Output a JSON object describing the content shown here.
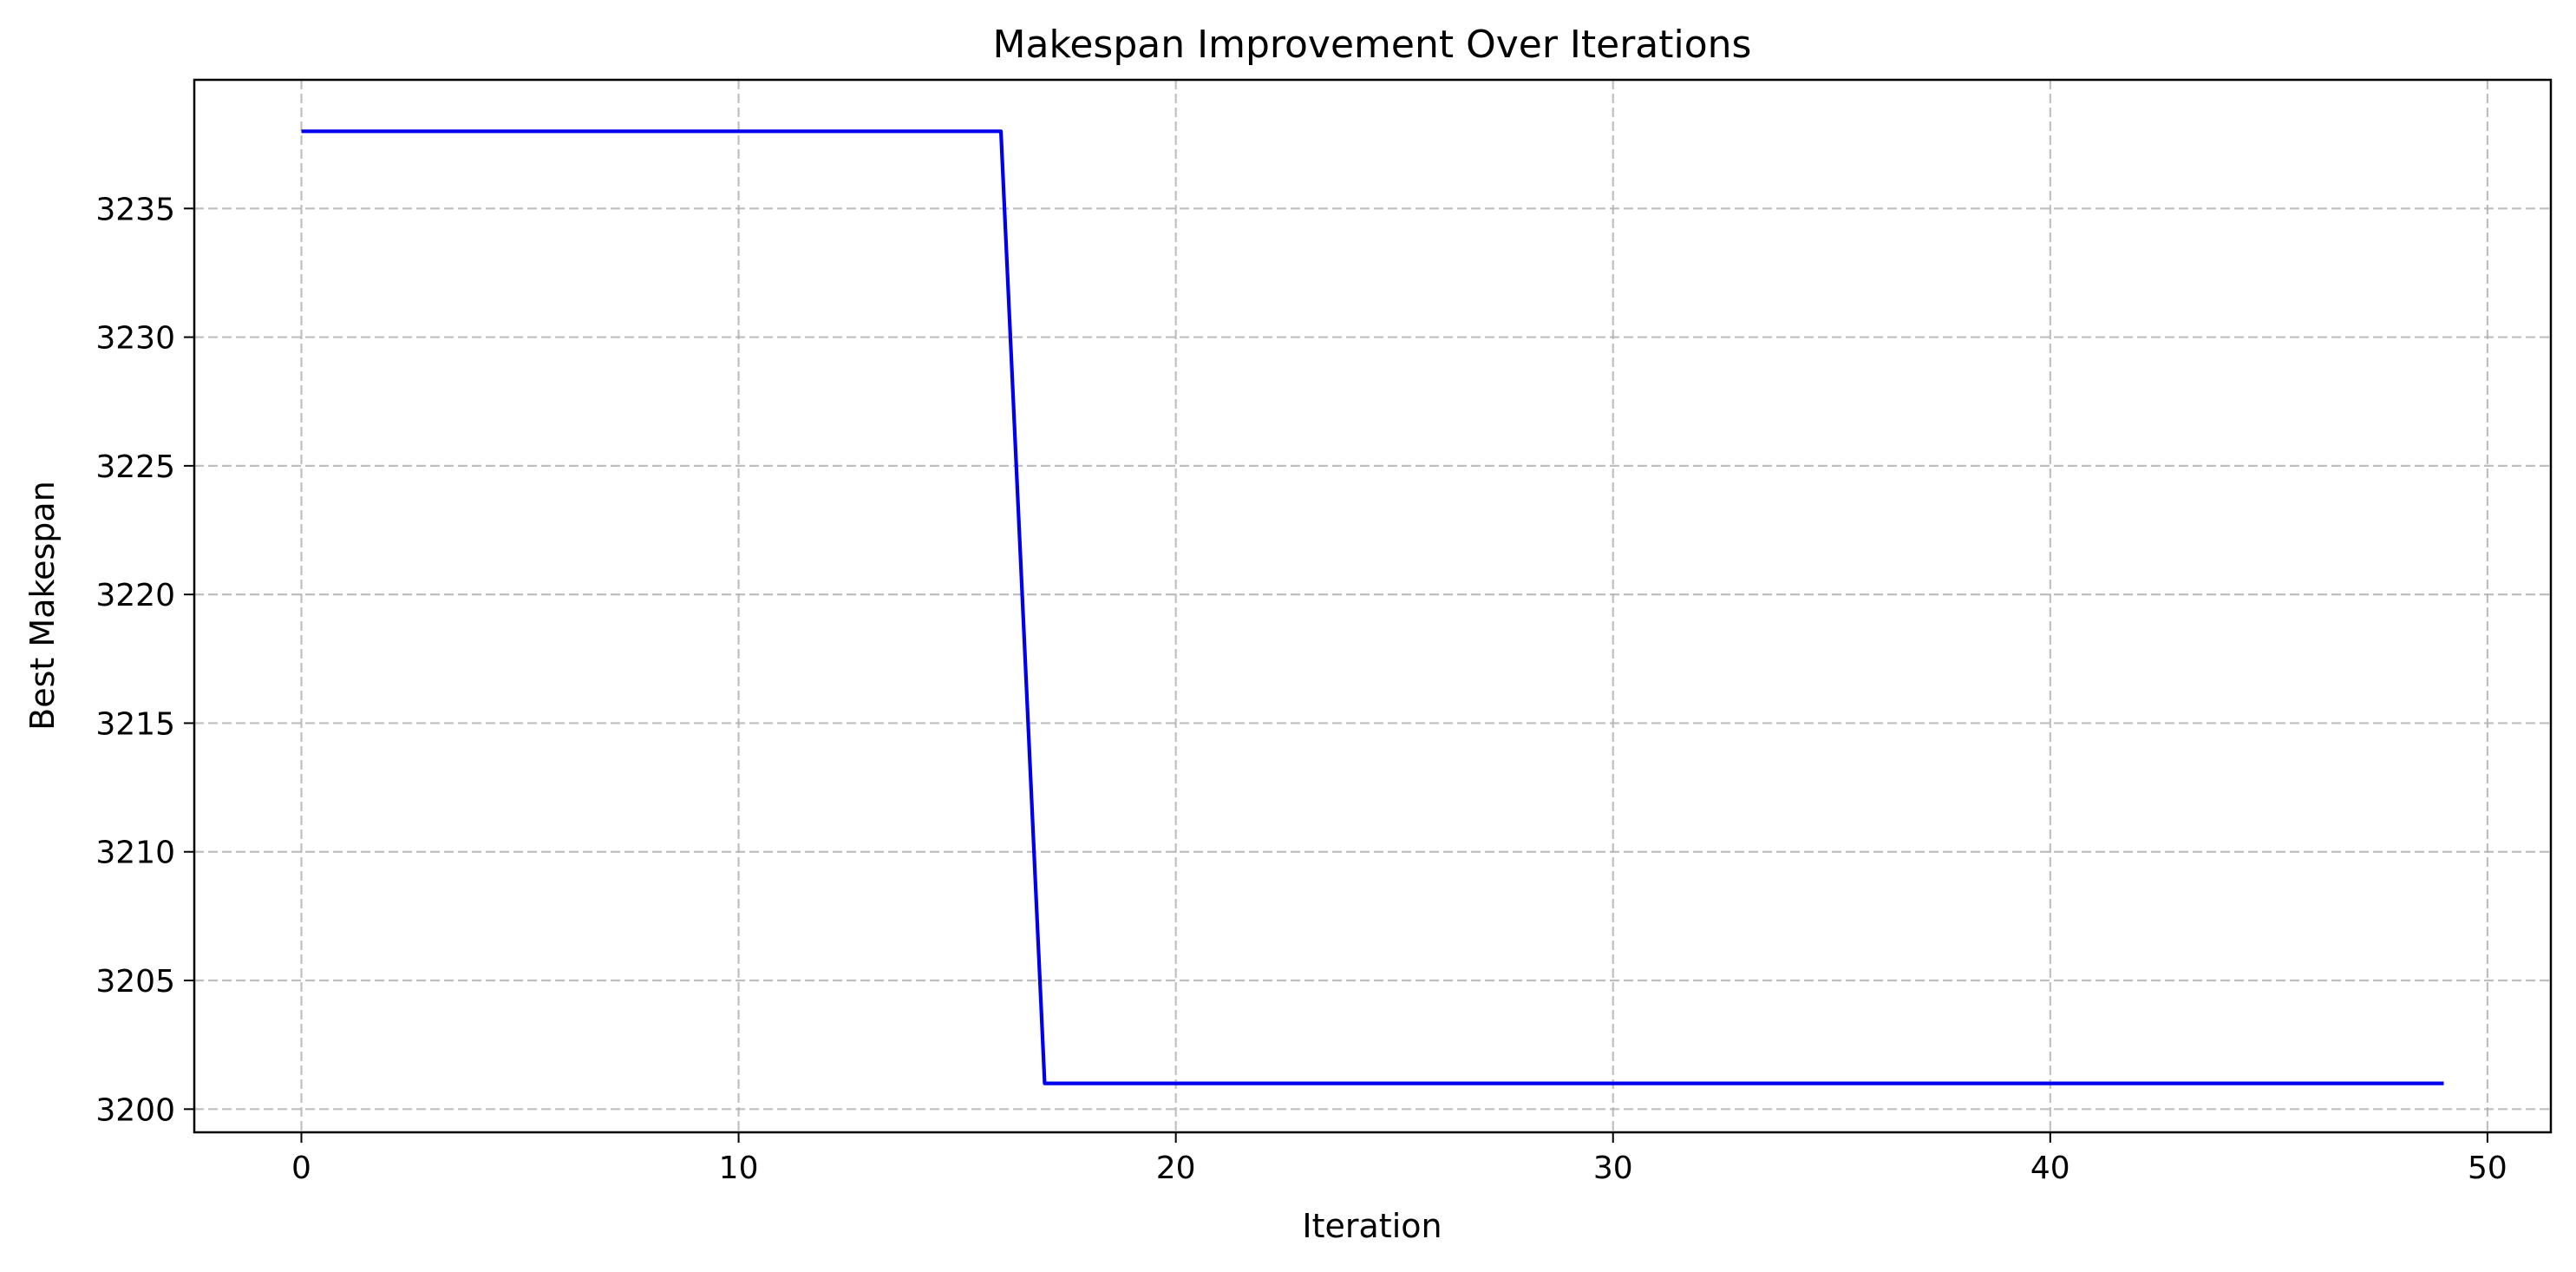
{
  "chart_data": {
    "type": "line",
    "title": "Makespan Improvement Over Iterations",
    "xlabel": "Iteration",
    "ylabel": "Best Makespan",
    "xlim": [
      -2.45,
      51.45
    ],
    "ylim": [
      3199.1,
      3240.0
    ],
    "x_ticks": [
      0,
      10,
      20,
      30,
      40,
      50
    ],
    "y_ticks": [
      3200,
      3205,
      3210,
      3215,
      3220,
      3225,
      3230,
      3235
    ],
    "grid": true,
    "legend": "none",
    "colors": {
      "line": "#0000ee",
      "grid": "#b0b0b0",
      "frame": "#000000"
    },
    "series": [
      {
        "x": [
          0,
          1,
          2,
          3,
          4,
          5,
          6,
          7,
          8,
          9,
          10,
          11,
          12,
          13,
          14,
          15,
          16,
          17,
          18,
          19,
          20,
          21,
          22,
          23,
          24,
          25,
          26,
          27,
          28,
          29,
          30,
          31,
          32,
          33,
          34,
          35,
          36,
          37,
          38,
          39,
          40,
          41,
          42,
          43,
          44,
          45,
          46,
          47,
          48,
          49
        ],
        "values": [
          3238,
          3238,
          3238,
          3238,
          3238,
          3238,
          3238,
          3238,
          3238,
          3238,
          3238,
          3238,
          3238,
          3238,
          3238,
          3238,
          3238,
          3201,
          3201,
          3201,
          3201,
          3201,
          3201,
          3201,
          3201,
          3201,
          3201,
          3201,
          3201,
          3201,
          3201,
          3201,
          3201,
          3201,
          3201,
          3201,
          3201,
          3201,
          3201,
          3201,
          3201,
          3201,
          3201,
          3201,
          3201,
          3201,
          3201,
          3201,
          3201,
          3201
        ]
      }
    ]
  }
}
